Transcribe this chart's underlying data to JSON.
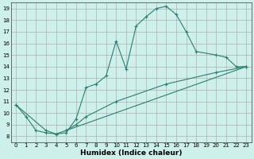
{
  "xlabel": "Humidex (Indice chaleur)",
  "bg_color": "#cdf0ea",
  "grid_color": "#b0b0b0",
  "line_color": "#2e7d6e",
  "xlim": [
    -0.5,
    23.5
  ],
  "ylim": [
    7.5,
    19.5
  ],
  "xticks": [
    0,
    1,
    2,
    3,
    4,
    5,
    6,
    7,
    8,
    9,
    10,
    11,
    12,
    13,
    14,
    15,
    16,
    17,
    18,
    19,
    20,
    21,
    22,
    23
  ],
  "yticks": [
    8,
    9,
    10,
    11,
    12,
    13,
    14,
    15,
    16,
    17,
    18,
    19
  ],
  "curve1": [
    [
      0,
      10.7
    ],
    [
      1,
      9.7
    ],
    [
      2,
      8.5
    ],
    [
      3,
      8.3
    ],
    [
      4,
      8.2
    ],
    [
      5,
      8.3
    ],
    [
      6,
      9.5
    ],
    [
      7,
      12.2
    ],
    [
      8,
      12.5
    ],
    [
      9,
      13.2
    ],
    [
      10,
      16.2
    ],
    [
      11,
      13.8
    ],
    [
      12,
      17.5
    ],
    [
      13,
      18.3
    ],
    [
      14,
      19.0
    ],
    [
      15,
      19.2
    ],
    [
      16,
      18.5
    ],
    [
      17,
      17.0
    ],
    [
      18,
      15.3
    ],
    [
      20,
      15.0
    ],
    [
      21,
      14.8
    ],
    [
      22,
      14.0
    ],
    [
      23,
      14.0
    ]
  ],
  "curve2": [
    [
      0,
      10.7
    ],
    [
      3,
      8.5
    ],
    [
      4,
      8.2
    ],
    [
      5,
      8.5
    ],
    [
      23,
      14.0
    ]
  ],
  "curve3": [
    [
      5,
      8.5
    ],
    [
      6,
      9.0
    ],
    [
      7,
      9.7
    ],
    [
      10,
      11.0
    ],
    [
      15,
      12.5
    ],
    [
      20,
      13.5
    ],
    [
      23,
      14.0
    ]
  ]
}
